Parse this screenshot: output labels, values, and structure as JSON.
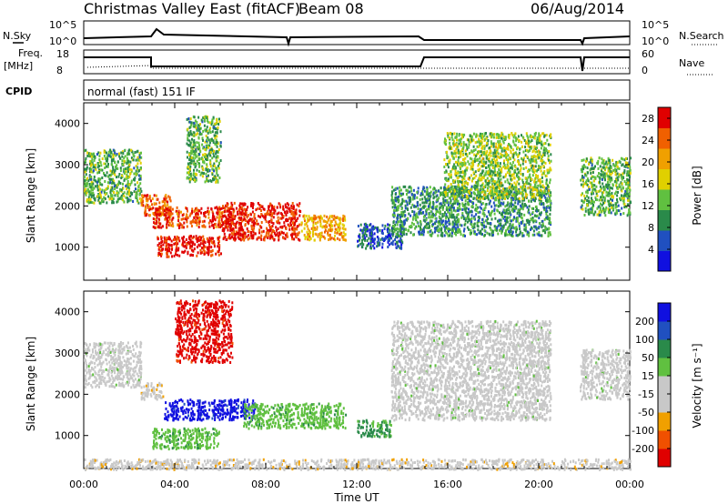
{
  "header": {
    "title": "Christmas Valley East (fitACF)",
    "beam": "Beam 08",
    "date": "06/Aug/2014"
  },
  "upper_panels": {
    "nsky_label": "N.Sky",
    "nsky_ticks": [
      "10^5",
      "10^0"
    ],
    "nsearch_label": "N.Search",
    "nsearch_ticks": [
      "10^5",
      "10^0"
    ],
    "freq_label_1": "Freq.",
    "freq_label_2": "[MHz]",
    "freq_ticks": [
      "18",
      "8"
    ],
    "nave_label": "Nave",
    "nave_ticks": [
      "60",
      "0"
    ],
    "cpid_label": "CPID",
    "cpid_text": "normal (fast) 151 IF"
  },
  "colors": {
    "power_scale": [
      "#1010e0",
      "#2050c0",
      "#2a8a4a",
      "#60c040",
      "#e0d000",
      "#f0a000",
      "#f06000",
      "#e00000"
    ],
    "velocity_scale": [
      "#e00000",
      "#f05000",
      "#f0a000",
      "#c8c8c8",
      "#c8c8c8",
      "#60c040",
      "#2a8a4a",
      "#2050c0",
      "#1010e0"
    ],
    "ground_scatter": "#a0a0a0"
  },
  "chart_data": [
    {
      "type": "heatmap",
      "name": "Power",
      "ylabel": "Slant Range [km]",
      "y_ticks": [
        "1000",
        "2000",
        "3000",
        "4000"
      ],
      "ylim": [
        200,
        4500
      ],
      "xlim_hours": [
        0,
        24
      ],
      "colorbar_label": "Power [dB]",
      "colorbar_ticks": [
        "4",
        "8",
        "12",
        "16",
        "20",
        "24",
        "28"
      ],
      "colorbar_range": [
        0,
        30
      ],
      "features": [
        {
          "t0": 0.0,
          "t1": 2.5,
          "r0": 2100,
          "r1": 3400,
          "value": 12
        },
        {
          "t0": 2.5,
          "t1": 3.8,
          "r0": 1800,
          "r1": 2300,
          "value": 24
        },
        {
          "t0": 3.2,
          "t1": 6.0,
          "r0": 800,
          "r1": 1300,
          "value": 28
        },
        {
          "t0": 3.0,
          "t1": 6.5,
          "r0": 1500,
          "r1": 2000,
          "value": 26
        },
        {
          "t0": 4.5,
          "t1": 6.0,
          "r0": 2600,
          "r1": 4200,
          "value": 12
        },
        {
          "t0": 6.0,
          "t1": 9.5,
          "r0": 1200,
          "r1": 2100,
          "value": 28
        },
        {
          "t0": 9.5,
          "t1": 11.5,
          "r0": 1200,
          "r1": 1800,
          "value": 20
        },
        {
          "t0": 12.0,
          "t1": 14.0,
          "r0": 1000,
          "r1": 1600,
          "value": 6
        },
        {
          "t0": 13.5,
          "t1": 20.5,
          "r0": 1300,
          "r1": 2500,
          "value": 10
        },
        {
          "t0": 15.8,
          "t1": 20.5,
          "r0": 2200,
          "r1": 3800,
          "value": 14
        },
        {
          "t0": 21.8,
          "t1": 24.0,
          "r0": 1800,
          "r1": 3200,
          "value": 12
        }
      ]
    },
    {
      "type": "heatmap",
      "name": "Velocity",
      "ylabel": "Slant Range [km]",
      "y_ticks": [
        "1000",
        "2000",
        "3000",
        "4000"
      ],
      "ylim": [
        200,
        4500
      ],
      "xlim_hours": [
        0,
        24
      ],
      "xlabel": "Time UT",
      "x_ticks": [
        "00:00",
        "04:00",
        "08:00",
        "12:00",
        "16:00",
        "20:00",
        "00:00"
      ],
      "colorbar_label": "Velocity [m s⁻¹]",
      "colorbar_ticks": [
        "-200",
        "-100",
        "-50",
        "-15",
        "15",
        "50",
        "100",
        "200"
      ],
      "colorbar_range": [
        -250,
        250
      ],
      "features": [
        {
          "t0": 0.0,
          "t1": 2.5,
          "r0": 2200,
          "r1": 3300,
          "value": 0
        },
        {
          "t0": 2.5,
          "t1": 3.5,
          "r0": 1900,
          "r1": 2300,
          "value": -60
        },
        {
          "t0": 3.0,
          "t1": 6.0,
          "r0": 700,
          "r1": 1200,
          "value": 60
        },
        {
          "t0": 4.0,
          "t1": 6.5,
          "r0": 2800,
          "r1": 4300,
          "value": -220
        },
        {
          "t0": 3.5,
          "t1": 7.5,
          "r0": 1400,
          "r1": 1900,
          "value": 220
        },
        {
          "t0": 7.0,
          "t1": 11.5,
          "r0": 1200,
          "r1": 1800,
          "value": 60
        },
        {
          "t0": 12.0,
          "t1": 13.5,
          "r0": 1000,
          "r1": 1400,
          "value": 100
        },
        {
          "t0": 13.5,
          "t1": 20.5,
          "r0": 1400,
          "r1": 3800,
          "value": 0
        },
        {
          "t0": 21.8,
          "t1": 24.0,
          "r0": 1900,
          "r1": 3100,
          "value": 0
        },
        {
          "t0": 0.0,
          "t1": 24.0,
          "r0": 200,
          "r1": 450,
          "value": -60
        }
      ]
    }
  ]
}
